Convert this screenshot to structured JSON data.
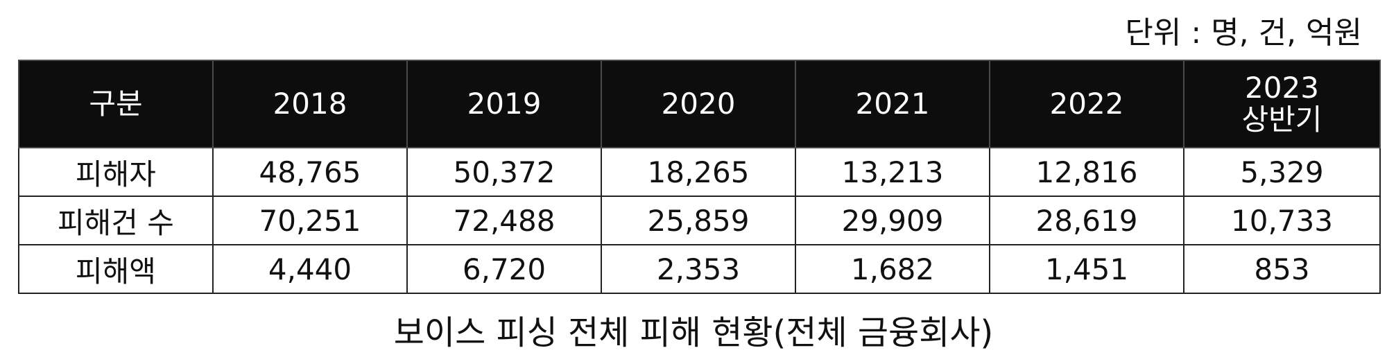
{
  "unit_note": "단위 : 명, 건, 억원",
  "table": {
    "header": {
      "category": "구분",
      "years": [
        {
          "line1": "2018",
          "line2": ""
        },
        {
          "line1": "2019",
          "line2": ""
        },
        {
          "line1": "2020",
          "line2": ""
        },
        {
          "line1": "2021",
          "line2": ""
        },
        {
          "line1": "2022",
          "line2": ""
        },
        {
          "line1": "2023",
          "line2": "상반기"
        }
      ]
    },
    "rows": [
      {
        "label": "피해자",
        "values": [
          "48,765",
          "50,372",
          "18,265",
          "13,213",
          "12,816",
          "5,329"
        ]
      },
      {
        "label": "피해건 수",
        "values": [
          "70,251",
          "72,488",
          "25,859",
          "29,909",
          "28,619",
          "10,733"
        ]
      },
      {
        "label": "피해액",
        "values": [
          "4,440",
          "6,720",
          "2,353",
          "1,682",
          "1,451",
          "853"
        ]
      }
    ]
  },
  "caption": "보이스 피싱 전체 피해 현황(전체 금융회사)"
}
